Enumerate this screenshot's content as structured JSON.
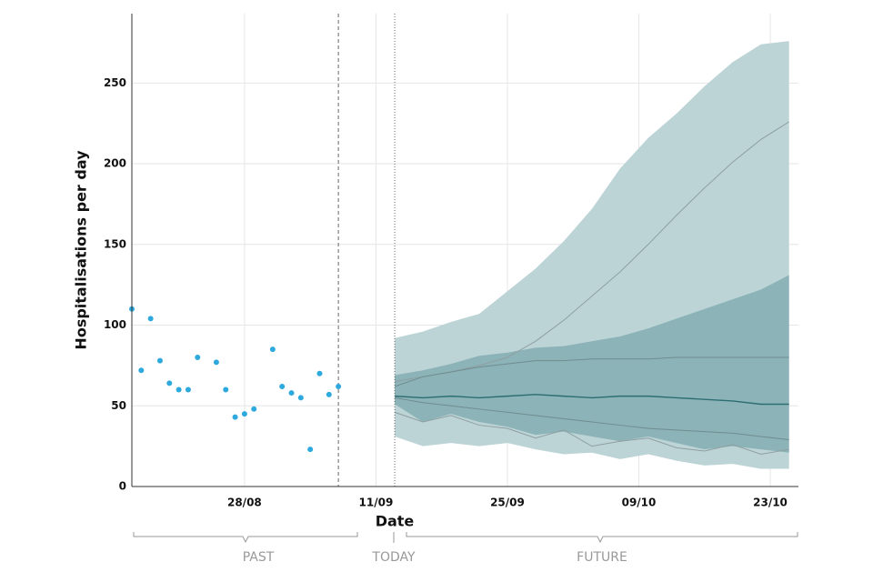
{
  "chart_data": {
    "type": "forecast",
    "ylabel": "Hospitalisations per day",
    "xlabel": "Date",
    "xlim": [
      "16/08",
      "26/10"
    ],
    "ylim": [
      0,
      293
    ],
    "yticks": [
      0,
      50,
      100,
      150,
      200,
      250
    ],
    "xticks": [
      "28/08",
      "11/09",
      "25/09",
      "09/10",
      "23/10"
    ],
    "grid": true,
    "annotations": [
      "PAST",
      "TODAY",
      "FUTURE"
    ],
    "vlines": [
      {
        "x": "07/09",
        "dash": "dashed"
      },
      {
        "x": "13/09",
        "dash": "dotted"
      }
    ],
    "observed": {
      "color": "#2ea9dd",
      "x": [
        "16/08",
        "17/08",
        "18/08",
        "19/08",
        "20/08",
        "21/08",
        "22/08",
        "23/08",
        "25/08",
        "26/08",
        "27/08",
        "28/08",
        "29/08",
        "31/08",
        "01/09",
        "02/09",
        "03/09",
        "04/09",
        "05/09",
        "06/09",
        "07/09"
      ],
      "values": [
        110,
        72,
        104,
        78,
        64,
        60,
        60,
        80,
        77,
        60,
        43,
        45,
        48,
        85,
        62,
        58,
        55,
        23,
        70,
        57,
        62
      ]
    },
    "forecast": {
      "x": [
        "13/09",
        "16/09",
        "19/09",
        "22/09",
        "25/09",
        "28/09",
        "01/10",
        "04/10",
        "07/10",
        "10/10",
        "13/10",
        "16/10",
        "19/10",
        "22/10",
        "25/10"
      ],
      "bands": [
        {
          "color": "#bdd4d7",
          "lower": [
            31,
            25,
            27,
            25,
            27,
            23,
            20,
            21,
            17,
            20,
            16,
            13,
            14,
            11,
            11
          ],
          "upper": [
            92,
            96,
            102,
            107,
            121,
            135,
            152,
            172,
            197,
            216,
            231,
            248,
            263,
            274,
            276
          ]
        },
        {
          "color": "#8cb3b7",
          "lower": [
            51,
            40,
            45,
            40,
            37,
            32,
            34,
            31,
            28,
            31,
            27,
            23,
            25,
            23,
            21
          ],
          "upper": [
            69,
            72,
            76,
            81,
            83,
            86,
            87,
            90,
            93,
            98,
            104,
            110,
            116,
            122,
            131
          ]
        }
      ],
      "lines": [
        {
          "color": "#8e9fa1",
          "values": [
            65,
            68,
            71,
            75,
            80,
            90,
            103,
            118,
            133,
            150,
            168,
            185,
            201,
            215,
            226
          ]
        },
        {
          "color": "#6f8d90",
          "values": [
            62,
            68,
            71,
            74,
            76,
            78,
            78,
            79,
            79,
            79,
            80,
            80,
            80,
            80,
            80
          ]
        },
        {
          "color": "#6f8d90",
          "values": [
            55,
            52,
            50,
            48,
            46,
            44,
            42,
            40,
            38,
            36,
            35,
            34,
            33,
            31,
            29
          ]
        },
        {
          "color": "#8e9fa1",
          "values": [
            46,
            40,
            44,
            38,
            36,
            30,
            35,
            25,
            28,
            30,
            24,
            22,
            26,
            20,
            23
          ]
        },
        {
          "color": "#2c6e73",
          "values": [
            56,
            55,
            56,
            55,
            56,
            57,
            56,
            55,
            56,
            56,
            55,
            54,
            53,
            51,
            51
          ]
        }
      ]
    }
  }
}
